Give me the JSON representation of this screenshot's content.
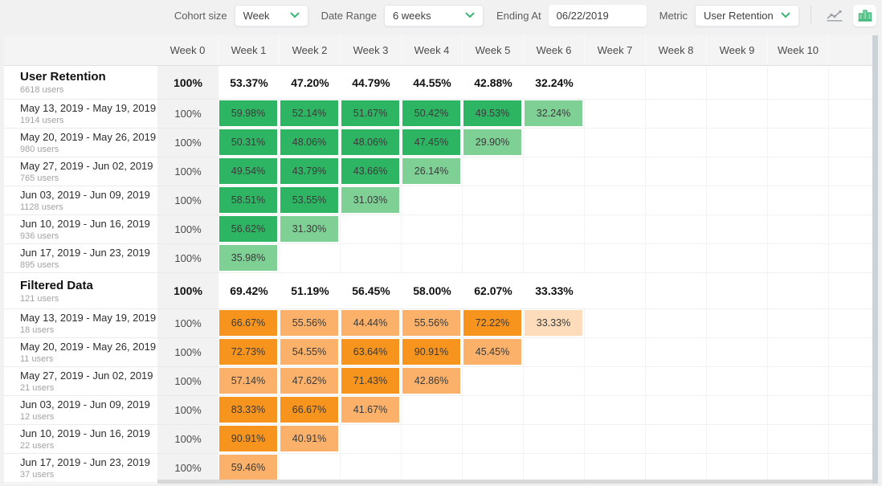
{
  "toolbar": {
    "cohort_size_label": "Cohort size",
    "cohort_size_value": "Week",
    "date_range_label": "Date Range",
    "date_range_value": "6 weeks",
    "ending_at_label": "Ending At",
    "ending_at_value": "06/22/2019",
    "metric_label": "Metric",
    "metric_value": "User Retention",
    "icons": {
      "line_chart": "line-chart-icon",
      "bar_chart": "bar-chart-icon",
      "chevron": "chevron-down-icon"
    }
  },
  "colors": {
    "accent_green": "#3cb878",
    "icon_gray": "#9aa0a6",
    "green": {
      "dark": "#2eb563",
      "light": "#7ed095",
      "dark_min": 40
    },
    "orange": {
      "dark": "#f7941e",
      "medium": "#fbb169",
      "light": "#fcdcbb",
      "dark_min": 63,
      "medium_min": 36
    }
  },
  "table": {
    "week_headers": [
      "Week 0",
      "Week 1",
      "Week 2",
      "Week 3",
      "Week 4",
      "Week 5",
      "Week 6",
      "Week 7",
      "Week 8",
      "Week 9",
      "Week 10"
    ],
    "groups": [
      {
        "name": "User Retention",
        "users": "6618 users",
        "color": "green",
        "summary_values": [
          "100%",
          "53.37%",
          "47.20%",
          "44.79%",
          "44.55%",
          "42.88%",
          "32.24%"
        ],
        "rows": [
          {
            "label": "May 13, 2019 - May 19, 2019",
            "users": "1914 users",
            "values": [
              "100%",
              "59.98%",
              "52.14%",
              "51.67%",
              "50.42%",
              "49.53%",
              "32.24%"
            ]
          },
          {
            "label": "May 20, 2019 - May 26, 2019",
            "users": "980 users",
            "values": [
              "100%",
              "50.31%",
              "48.06%",
              "48.06%",
              "47.45%",
              "29.90%"
            ]
          },
          {
            "label": "May 27, 2019 - Jun 02, 2019",
            "users": "765 users",
            "values": [
              "100%",
              "49.54%",
              "43.79%",
              "43.66%",
              "26.14%"
            ]
          },
          {
            "label": "Jun 03, 2019 - Jun 09, 2019",
            "users": "1128 users",
            "values": [
              "100%",
              "58.51%",
              "53.55%",
              "31.03%"
            ]
          },
          {
            "label": "Jun 10, 2019 - Jun 16, 2019",
            "users": "936 users",
            "values": [
              "100%",
              "56.62%",
              "31.30%"
            ]
          },
          {
            "label": "Jun 17, 2019 - Jun 23, 2019",
            "users": "895 users",
            "values": [
              "100%",
              "35.98%"
            ]
          }
        ]
      },
      {
        "name": "Filtered Data",
        "users": "121 users",
        "color": "orange",
        "summary_values": [
          "100%",
          "69.42%",
          "51.19%",
          "56.45%",
          "58.00%",
          "62.07%",
          "33.33%"
        ],
        "rows": [
          {
            "label": "May 13, 2019 - May 19, 2019",
            "users": "18 users",
            "values": [
              "100%",
              "66.67%",
              "55.56%",
              "44.44%",
              "55.56%",
              "72.22%",
              "33.33%"
            ]
          },
          {
            "label": "May 20, 2019 - May 26, 2019",
            "users": "11 users",
            "values": [
              "100%",
              "72.73%",
              "54.55%",
              "63.64%",
              "90.91%",
              "45.45%"
            ]
          },
          {
            "label": "May 27, 2019 - Jun 02, 2019",
            "users": "21 users",
            "values": [
              "100%",
              "57.14%",
              "47.62%",
              "71.43%",
              "42.86%"
            ]
          },
          {
            "label": "Jun 03, 2019 - Jun 09, 2019",
            "users": "12 users",
            "values": [
              "100%",
              "83.33%",
              "66.67%",
              "41.67%"
            ]
          },
          {
            "label": "Jun 10, 2019 - Jun 16, 2019",
            "users": "22 users",
            "values": [
              "100%",
              "90.91%",
              "40.91%"
            ]
          },
          {
            "label": "Jun 17, 2019 - Jun 23, 2019",
            "users": "37 users",
            "values": [
              "100%",
              "59.46%"
            ]
          }
        ]
      }
    ]
  }
}
